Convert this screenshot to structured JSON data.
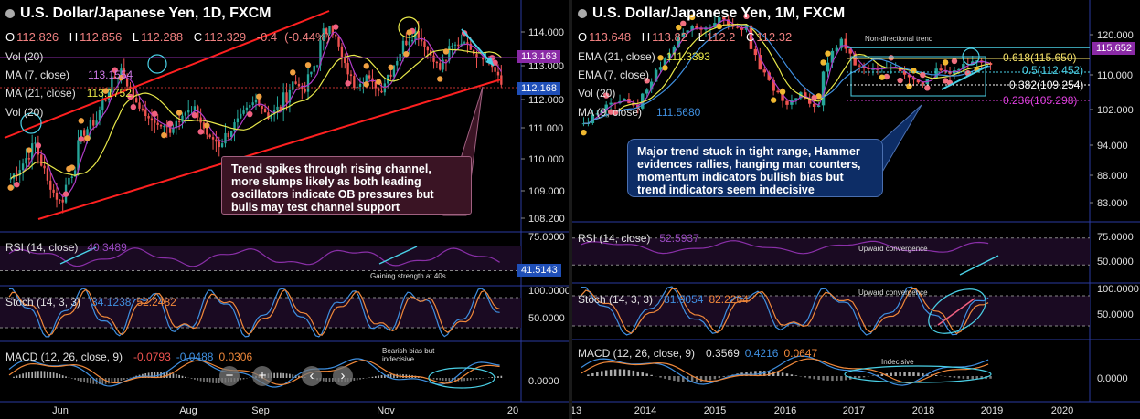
{
  "left": {
    "title": "U.S. Dollar/Japanese Yen, 1D, FXCM",
    "ohlc": {
      "O": "112.826",
      "H": "112.856",
      "L": "112.288",
      "C": "112.329",
      "chg": "-0.4",
      "chg_pct": "(-0.44%)"
    },
    "indicators": {
      "vol_top": "Vol (20)",
      "ma7": {
        "label": "MA (7, close)",
        "value": "113.1554"
      },
      "ma21": {
        "label": "MA (21, close)",
        "value": "113.1752"
      },
      "vol_left": "Vol (20)"
    },
    "price_tags": {
      "upper": "113.163",
      "lower": "112.168",
      "rsi": "41.5143"
    },
    "price_axis": [
      "114.000",
      "113.000",
      "112.000",
      "111.000",
      "110.000",
      "109.000",
      "108.200"
    ],
    "time_axis": [
      "Jun",
      "Aug",
      "Sep",
      "Nov",
      "20"
    ],
    "annotation": "Trend spikes through rising channel, more slumps likely as both leading oscillators indicate OB pressures but bulls may test channel support",
    "rsi": {
      "label": "RSI (14, close)",
      "value": "40.3489",
      "axis": [
        "75.0000"
      ],
      "note": "Gaining strength at 40s"
    },
    "stoch": {
      "label": "Stoch (14, 3, 3)",
      "k": "34.1238",
      "d": "52.2482",
      "axis": [
        "100.0000",
        "50.0000"
      ]
    },
    "macd": {
      "label": "MACD (12, 26, close, 9)",
      "v1": "-0.0793",
      "v2": "-0.0488",
      "v3": "0.0306",
      "axis": [
        "0.0000"
      ],
      "note": "Bearish bias but indecisive"
    },
    "buttons": [
      "−",
      "+",
      "‹",
      "›"
    ]
  },
  "right": {
    "title": "U.S. Dollar/Japanese Yen, 1M, FXCM",
    "ohlc": {
      "O": "113.648",
      "H": "113.82",
      "L": "112.2",
      "C": "112.32"
    },
    "indicators": {
      "ema21": {
        "label": "EMA (21, close)",
        "value": "111.3393"
      },
      "ema7": {
        "label": "EMA (7, close)"
      },
      "vol": "Vol (20)",
      "ma9": {
        "label": "MA (9, close)",
        "value": "111.5680"
      }
    },
    "trend_label": "Non-directional trend",
    "fib": [
      "0.618(115.650)",
      "0.5(112.452)",
      "0.382(109.254)",
      "0.236(105.298)"
    ],
    "price_tag": "115.652",
    "price_axis": [
      "120.000",
      "110.000",
      "102.000",
      "94.000",
      "88.000",
      "83.000"
    ],
    "time_axis": [
      "13",
      "2014",
      "2015",
      "2016",
      "2017",
      "2018",
      "2019",
      "2020"
    ],
    "annotation": "Major trend stuck in tight range, Hammer evidences rallies, hanging man counters, momentum indicators bullish bias but trend indicators seem indecisive",
    "rsi": {
      "label": "RSI (14, close)",
      "value": "52.5937",
      "axis": [
        "75.0000",
        "50.0000"
      ],
      "note": "Upward convergence"
    },
    "stoch": {
      "label": "Stoch (14, 3, 3)",
      "k": "81.9054",
      "d": "82.2264",
      "axis": [
        "100.0000",
        "50.0000"
      ],
      "note": "Upward convergence"
    },
    "macd": {
      "label": "MACD (12, 26, close, 9)",
      "v1": "0.3569",
      "v2": "0.4216",
      "v3": "0.0647",
      "axis": [
        "0.0000"
      ],
      "note": "Indecisive"
    }
  },
  "colors": {
    "bull": "#26a69a",
    "bear": "#ef5350",
    "channel": "#ff2020",
    "ma7": "#b03cc8",
    "ma21": "#e8e84a",
    "rsi": "#8a2fa8",
    "stoch_k": "#3f8fe0",
    "stoch_d": "#f0883a",
    "annotation_left": "#3a1424",
    "annotation_right": "#0d2d66"
  },
  "chart_data": [
    {
      "type": "candlestick",
      "title": "U.S. Dollar/Japanese Yen, 1D, FXCM",
      "ylim": [
        108.0,
        114.6
      ],
      "x_ticks": [
        "Jun",
        "Aug",
        "Sep",
        "Nov"
      ],
      "close_path": [
        109.3,
        109.8,
        110.4,
        109.2,
        108.5,
        109.6,
        110.8,
        111.2,
        112.2,
        112.8,
        111.9,
        111.3,
        111.0,
        110.9,
        111.4,
        111.5,
        110.7,
        110.4,
        110.9,
        111.3,
        111.8,
        111.3,
        111.6,
        112.4,
        112.1,
        113.2,
        114.4,
        113.1,
        112.3,
        112.6,
        112.1,
        112.8,
        113.6,
        114.0,
        113.4,
        112.8,
        113.5,
        113.7,
        113.2,
        113.1,
        112.3
      ]
    },
    {
      "type": "candlestick",
      "title": "U.S. Dollar/Japanese Yen, 1M, FXCM",
      "ylim": [
        78,
        124
      ],
      "x_ticks": [
        "2014",
        "2015",
        "2016",
        "2017",
        "2018",
        "2019",
        "2020"
      ],
      "close_path": [
        98,
        101,
        103,
        104,
        102,
        108,
        114,
        119,
        121,
        120,
        123,
        121,
        120,
        112,
        106,
        103,
        105,
        101,
        113,
        117,
        112,
        111,
        111,
        112,
        109,
        107,
        111,
        110,
        112,
        113,
        112
      ]
    }
  ]
}
